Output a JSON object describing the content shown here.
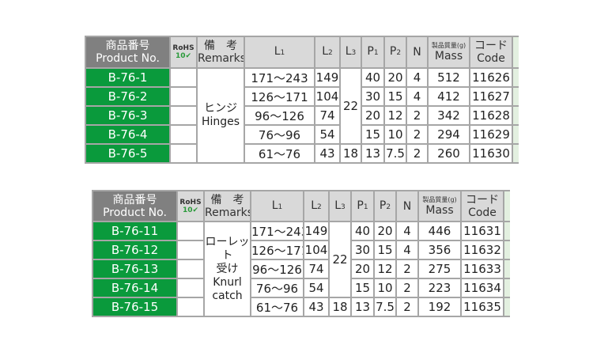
{
  "columns": {
    "product_jp": "商品番号",
    "product_en": "Product No.",
    "rohs": "RoHS",
    "rohs_sub": "10",
    "remarks_jp": "備　考",
    "remarks_en": "Remarks",
    "L1": "L",
    "L2": "L",
    "L3": "L",
    "P1": "P",
    "P2": "P",
    "sub1": "1",
    "sub2": "2",
    "sub3": "3",
    "N": "N",
    "mass_jp": "製品質量(g)",
    "mass_en": "Mass",
    "code_jp": "コード",
    "code_en": "Code"
  },
  "colors": {
    "green": "#0a9a3c",
    "header_gray": "#d9d9d9",
    "product_header": "#808080"
  },
  "tables": [
    {
      "remarks": [
        "ヒンジ",
        "Hinges"
      ],
      "l3_shared": "22",
      "rows": [
        {
          "product": "B-76-1",
          "L1": "171～243",
          "L2": "149",
          "L3": "",
          "P1": "40",
          "P2": "20",
          "N": "4",
          "mass": "512",
          "code": "11626"
        },
        {
          "product": "B-76-2",
          "L1": "126～171",
          "L2": "104",
          "L3": "",
          "P1": "30",
          "P2": "15",
          "N": "4",
          "mass": "412",
          "code": "11627"
        },
        {
          "product": "B-76-3",
          "L1": "96～126",
          "L2": "74",
          "L3": "",
          "P1": "20",
          "P2": "12",
          "N": "2",
          "mass": "342",
          "code": "11628"
        },
        {
          "product": "B-76-4",
          "L1": "76～96",
          "L2": "54",
          "L3": "",
          "P1": "15",
          "P2": "10",
          "N": "2",
          "mass": "294",
          "code": "11629"
        },
        {
          "product": "B-76-5",
          "L1": "61～76",
          "L2": "43",
          "L3": "18",
          "P1": "13",
          "P2": "7.5",
          "N": "2",
          "mass": "260",
          "code": "11630"
        }
      ]
    },
    {
      "remarks": [
        "ローレット",
        "受け",
        "Knurl",
        "catch"
      ],
      "l3_shared": "22",
      "rows": [
        {
          "product": "B-76-11",
          "L1": "171～243",
          "L2": "149",
          "L3": "",
          "P1": "40",
          "P2": "20",
          "N": "4",
          "mass": "446",
          "code": "11631"
        },
        {
          "product": "B-76-12",
          "L1": "126～171",
          "L2": "104",
          "L3": "",
          "P1": "30",
          "P2": "15",
          "N": "4",
          "mass": "356",
          "code": "11632"
        },
        {
          "product": "B-76-13",
          "L1": "96～126",
          "L2": "74",
          "L3": "",
          "P1": "20",
          "P2": "12",
          "N": "2",
          "mass": "275",
          "code": "11633"
        },
        {
          "product": "B-76-14",
          "L1": "76～96",
          "L2": "54",
          "L3": "",
          "P1": "15",
          "P2": "10",
          "N": "2",
          "mass": "223",
          "code": "11634"
        },
        {
          "product": "B-76-15",
          "L1": "61～76",
          "L2": "43",
          "L3": "18",
          "P1": "13",
          "P2": "7.5",
          "N": "2",
          "mass": "192",
          "code": "11635"
        }
      ]
    }
  ]
}
